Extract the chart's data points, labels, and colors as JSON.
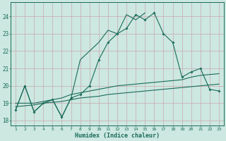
{
  "xlabel": "Humidex (Indice chaleur)",
  "x": [
    1,
    2,
    3,
    4,
    5,
    6,
    7,
    8,
    9,
    10,
    11,
    12,
    13,
    14,
    15,
    16,
    17,
    18,
    19,
    20,
    21,
    22,
    23
  ],
  "line1": [
    18.6,
    20.0,
    18.5,
    19.0,
    19.2,
    18.2,
    19.3,
    19.5,
    20.0,
    21.5,
    22.5,
    23.0,
    23.3,
    24.1,
    23.8,
    24.2,
    23.0,
    22.5,
    20.5,
    20.8,
    21.0,
    19.8,
    19.7
  ],
  "line2_x": [
    1,
    2,
    3,
    4,
    5,
    6,
    7,
    8,
    9,
    10,
    11,
    12,
    13,
    14,
    15
  ],
  "line2_y": [
    18.6,
    20.0,
    18.5,
    19.0,
    19.2,
    18.2,
    19.3,
    21.5,
    22.0,
    22.5,
    23.2,
    23.0,
    24.1,
    23.8,
    24.2
  ],
  "line3": [
    19.0,
    19.0,
    19.0,
    19.1,
    19.2,
    19.3,
    19.5,
    19.6,
    19.7,
    19.8,
    19.9,
    20.0,
    20.05,
    20.1,
    20.15,
    20.2,
    20.25,
    20.3,
    20.35,
    20.5,
    20.6,
    20.65,
    20.7
  ],
  "line4": [
    18.8,
    18.85,
    18.9,
    19.0,
    19.05,
    19.1,
    19.2,
    19.3,
    19.35,
    19.4,
    19.5,
    19.55,
    19.6,
    19.65,
    19.7,
    19.75,
    19.8,
    19.85,
    19.9,
    19.95,
    20.0,
    20.05,
    20.1
  ],
  "ylim": [
    17.7,
    24.8
  ],
  "yticks": [
    18,
    19,
    20,
    21,
    22,
    23,
    24
  ],
  "color": "#1a6b5a",
  "bg_color": "#cce8e0",
  "grid_color": "#b8d8d0",
  "plot_bg": "#cce8e0"
}
